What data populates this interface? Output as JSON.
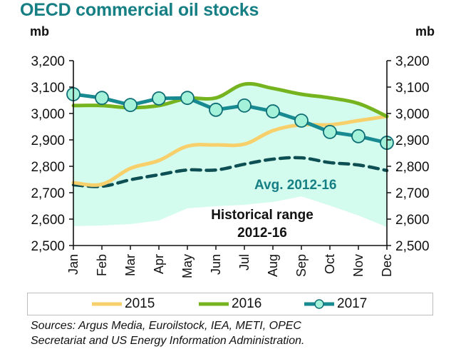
{
  "title": "OECD commercial oil stocks",
  "chart_data": {
    "type": "line",
    "title": "OECD commercial oil stocks",
    "ylabel_left": "mb",
    "ylabel_right": "mb",
    "xlabel": "",
    "categories": [
      "Jan",
      "Feb",
      "Mar",
      "Apr",
      "May",
      "Jun",
      "Jul",
      "Aug",
      "Sep",
      "Oct",
      "Nov",
      "Dec"
    ],
    "ylim": [
      2500,
      3200
    ],
    "yticks": [
      2500,
      2600,
      2700,
      2800,
      2900,
      3000,
      3100,
      3200
    ],
    "ytick_labels": [
      "2,500",
      "2,600",
      "2,700",
      "2,800",
      "2,900",
      "3,000",
      "3,100",
      "3,200"
    ],
    "grid": false,
    "range": {
      "name": "Historical range 2012-16",
      "label_line1": "Historical range",
      "label_line2": "2012-16",
      "lower": [
        2573,
        2576,
        2581,
        2595,
        2641,
        2649,
        2654,
        2665,
        2686,
        2651,
        2614,
        2570
      ],
      "upper": [
        3030,
        3030,
        3022,
        3030,
        3057,
        3059,
        3111,
        3095,
        3073,
        3059,
        3038,
        2989
      ],
      "color": "#d3fbee"
    },
    "series": [
      {
        "name": "2015",
        "values": [
          2738,
          2732,
          2792,
          2822,
          2876,
          2881,
          2884,
          2935,
          2957,
          2957,
          2973,
          2989
        ],
        "color": "#f8d06b",
        "style": "solid"
      },
      {
        "name": "2016",
        "values": [
          3030,
          3030,
          3022,
          3030,
          3057,
          3059,
          3111,
          3095,
          3073,
          3059,
          3038,
          2989
        ],
        "color": "#76b41f",
        "style": "solid"
      },
      {
        "name": "2017",
        "values": [
          3073,
          3059,
          3032,
          3057,
          3059,
          3014,
          3030,
          3008,
          2973,
          2930,
          2914,
          2889
        ],
        "color": "#178a92",
        "marker_fill": "#a4f2da",
        "style": "solid-markers"
      },
      {
        "name": "Avg. 2012-16",
        "values": [
          2730,
          2724,
          2749,
          2768,
          2786,
          2786,
          2808,
          2827,
          2832,
          2814,
          2805,
          2784
        ],
        "color": "#0d4f52",
        "style": "dashed"
      }
    ],
    "annotations": [
      {
        "text": "Avg. 2012-16",
        "color": "#167f84"
      }
    ],
    "legend": {
      "placement": "bottom",
      "entries": [
        "2015",
        "2016",
        "2017"
      ]
    }
  },
  "sources": {
    "line1": "Sources: Argus Media, Euroilstock, IEA, METI, OPEC",
    "line2": "Secretariat and US Energy Information Administration."
  }
}
